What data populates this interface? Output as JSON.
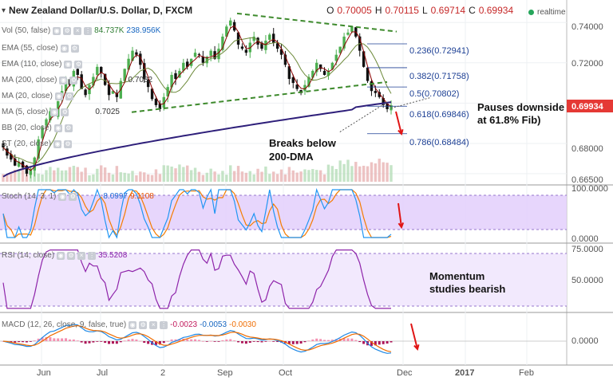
{
  "header": {
    "title": "New Zealand Dollar/U.S. Dollar, D, FXCM",
    "o_label": "O",
    "o_value": "0.70005",
    "h_label": "H",
    "h_value": "0.70115",
    "l_label": "L",
    "l_value": "0.69714",
    "c_label": "C",
    "c_value": "0.69934",
    "realtime": "realtime"
  },
  "indicators": {
    "vol": "Vol (50, false)",
    "vol_v1": "84.737K",
    "vol_v2": "238.956K",
    "ema55": "EMA (55, close)",
    "ema110": "EMA (110, close)",
    "ma200": "MA (200, close)",
    "ma200_v": "0.7082",
    "ma20": "MA (20, close)",
    "ma5": "MA (5, close)",
    "ma5_v": "0.7025",
    "bb": "BB (20, close)",
    "st": "ST (20, close)",
    "stoch": "Stoch (14, 3, 1)",
    "stoch_v1": "8.0997",
    "stoch_v2": "9.1108",
    "rsi": "RSI (14, close)",
    "rsi_v": "35.5208",
    "macd": "MACD (12, 26, close, 9, false, true)",
    "macd_v1": "-0.0023",
    "macd_v2": "-0.0053",
    "macd_v3": "-0.0030"
  },
  "annotations": {
    "pauses_line1": "Pauses downside",
    "pauses_line2": "at 61.8% Fib)",
    "breaks_line1": "Breaks below",
    "breaks_line2": "200-DMA",
    "mom_line1": "Momentum",
    "mom_line2": "studies bearish"
  },
  "colors": {
    "up_candle": "#4caf50",
    "down_candle": "#111111",
    "ma200": "#2e1f7a",
    "trend": "#3d8a2c",
    "fib": "#1c3f94",
    "arrow": "#e01515",
    "stoch_k": "#2196f3",
    "stoch_d": "#f57c00",
    "osc_band": "#e3cffb",
    "rsi_line": "#8e24aa",
    "price_tag": "#e53935"
  },
  "chart_data": [
    {
      "type": "candlestick",
      "title": "New Zealand Dollar/U.S. Dollar, D, FXCM",
      "ylim": [
        0.661,
        0.748
      ],
      "yticks": [
        "0.74000",
        "0.72000",
        "0.70000",
        "0.68000",
        "0.66500"
      ],
      "ytick_values": [
        0.74,
        0.72,
        0.7,
        0.68,
        0.665
      ],
      "x_tick_labels": [
        "Jun",
        "Jul",
        "2",
        "Sep",
        "Oct",
        "Dec",
        "2017",
        "Feb"
      ],
      "last_price": "0.69934",
      "fibonacci": [
        {
          "label": "0.236(0.72941)",
          "value": 0.72941
        },
        {
          "label": "0.382(0.71758)",
          "value": 0.71758
        },
        {
          "label": "0.5(0.70802)",
          "value": 0.70802
        },
        {
          "label": "0.618(0.69846)",
          "value": 0.69846
        },
        {
          "label": "0.786(0.68484)",
          "value": 0.68484
        }
      ],
      "ohlc_close_approx": [
        0.678,
        0.674,
        0.672,
        0.669,
        0.671,
        0.668,
        0.665,
        0.667,
        0.673,
        0.682,
        0.688,
        0.692,
        0.696,
        0.694,
        0.701,
        0.706,
        0.712,
        0.709,
        0.716,
        0.714,
        0.707,
        0.704,
        0.709,
        0.713,
        0.718,
        0.715,
        0.709,
        0.704,
        0.706,
        0.703,
        0.711,
        0.717,
        0.722,
        0.726,
        0.724,
        0.719,
        0.712,
        0.708,
        0.702,
        0.699,
        0.697,
        0.703,
        0.708,
        0.714,
        0.712,
        0.716,
        0.72,
        0.718,
        0.722,
        0.725,
        0.724,
        0.72,
        0.723,
        0.726,
        0.722,
        0.727,
        0.733,
        0.738,
        0.741,
        0.736,
        0.729,
        0.727,
        0.725,
        0.73,
        0.733,
        0.729,
        0.727,
        0.731,
        0.734,
        0.73,
        0.727,
        0.724,
        0.719,
        0.712,
        0.71,
        0.707,
        0.705,
        0.709,
        0.713,
        0.716,
        0.72,
        0.717,
        0.714,
        0.716,
        0.72,
        0.724,
        0.728,
        0.733,
        0.735,
        0.738,
        0.733,
        0.726,
        0.718,
        0.711,
        0.706,
        0.705,
        0.703,
        0.699,
        0.697,
        0.699
      ]
    },
    {
      "type": "line",
      "title": "Stoch (14, 3, 1)",
      "ylim": [
        0,
        100
      ],
      "yticks": [
        "100.0000",
        "0.0000"
      ],
      "series": [
        {
          "name": "Stoch",
          "values": [
            8.0997,
            9.1108
          ]
        }
      ]
    },
    {
      "type": "line",
      "title": "RSI (14, close)",
      "yticks": [
        "75.0000",
        "50.0000"
      ],
      "series": [
        {
          "name": "RSI",
          "values": [
            35.5208
          ]
        }
      ]
    },
    {
      "type": "bar",
      "title": "MACD (12, 26, close, 9, false, true)",
      "yticks": [
        "0.0000"
      ],
      "series": [
        {
          "name": "MACD",
          "values": [
            -0.0023,
            -0.0053,
            -0.003
          ]
        }
      ]
    }
  ]
}
